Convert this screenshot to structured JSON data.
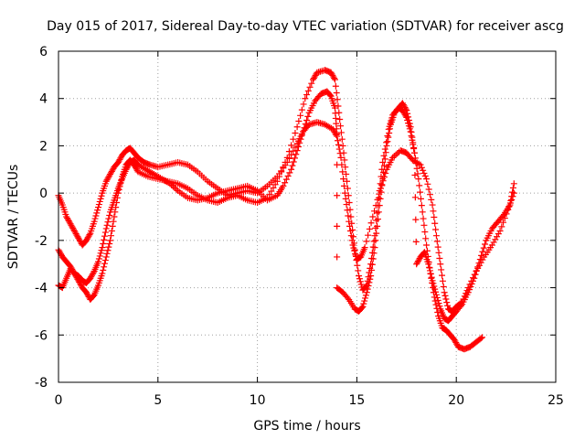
{
  "chart_data": {
    "type": "scatter",
    "title": "Day 015 of 2017, Sidereal Day-to-day VTEC variation (SDTVAR) for receiver ascg",
    "xlabel": "GPS time / hours",
    "ylabel": "SDTVAR / TECUs",
    "xlim": [
      0,
      25
    ],
    "ylim": [
      -8,
      6
    ],
    "xticks": [
      0,
      5,
      10,
      15,
      20,
      25
    ],
    "yticks": [
      -8,
      -6,
      -4,
      -2,
      0,
      2,
      4,
      6
    ],
    "grid": true,
    "marker": "+",
    "color": "#ff0000",
    "series": [
      {
        "points": [
          [
            0.0,
            -0.1
          ],
          [
            0.2,
            -0.5
          ],
          [
            0.4,
            -1.0
          ],
          [
            0.6,
            -1.3
          ],
          [
            0.8,
            -1.6
          ],
          [
            1.0,
            -1.9
          ],
          [
            1.2,
            -2.2
          ],
          [
            1.4,
            -2.0
          ],
          [
            1.6,
            -1.7
          ],
          [
            1.8,
            -1.2
          ],
          [
            2.0,
            -0.6
          ],
          [
            2.2,
            0.0
          ],
          [
            2.4,
            0.5
          ],
          [
            2.6,
            0.8
          ],
          [
            2.8,
            1.1
          ],
          [
            3.0,
            1.3
          ],
          [
            3.2,
            1.6
          ],
          [
            3.4,
            1.8
          ],
          [
            3.6,
            1.9
          ],
          [
            3.8,
            1.7
          ],
          [
            4.0,
            1.5
          ],
          [
            4.3,
            1.3
          ],
          [
            4.6,
            1.2
          ],
          [
            5.0,
            1.1
          ],
          [
            5.5,
            1.2
          ],
          [
            6.0,
            1.3
          ],
          [
            6.5,
            1.2
          ],
          [
            7.0,
            0.9
          ],
          [
            7.5,
            0.5
          ],
          [
            8.0,
            0.2
          ],
          [
            8.5,
            -0.1
          ],
          [
            9.0,
            0.0
          ],
          [
            9.5,
            0.1
          ],
          [
            10.0,
            0.0
          ],
          [
            10.5,
            0.3
          ],
          [
            11.0,
            0.7
          ],
          [
            11.5,
            1.3
          ],
          [
            12.0,
            2.1
          ],
          [
            12.3,
            2.6
          ],
          [
            12.6,
            2.9
          ],
          [
            13.0,
            3.0
          ],
          [
            13.4,
            2.9
          ],
          [
            13.8,
            2.7
          ],
          [
            14.0,
            2.4
          ],
          [
            14.2,
            1.5
          ],
          [
            14.4,
            0.0
          ],
          [
            14.6,
            -1.2
          ],
          [
            14.8,
            -2.2
          ],
          [
            15.0,
            -2.8
          ],
          [
            15.2,
            -2.7
          ],
          [
            15.4,
            -2.3
          ],
          [
            15.8,
            -1.0
          ],
          [
            16.2,
            0.2
          ],
          [
            16.5,
            1.0
          ],
          [
            16.8,
            1.5
          ],
          [
            17.2,
            1.8
          ],
          [
            17.5,
            1.7
          ],
          [
            17.8,
            1.4
          ],
          [
            18.2,
            1.2
          ],
          [
            18.5,
            0.6
          ],
          [
            18.8,
            -0.5
          ],
          [
            19.0,
            -1.8
          ],
          [
            19.2,
            -3.0
          ],
          [
            19.4,
            -4.2
          ],
          [
            19.6,
            -4.9
          ],
          [
            19.8,
            -5.0
          ],
          [
            20.0,
            -4.8
          ],
          [
            20.3,
            -4.6
          ],
          [
            20.6,
            -4.0
          ],
          [
            21.0,
            -3.3
          ],
          [
            21.4,
            -2.7
          ],
          [
            21.8,
            -2.2
          ],
          [
            22.2,
            -1.6
          ],
          [
            22.6,
            -0.7
          ],
          [
            22.9,
            0.0
          ]
        ]
      },
      {
        "points": [
          [
            0.0,
            -2.4
          ],
          [
            0.2,
            -2.7
          ],
          [
            0.4,
            -2.9
          ],
          [
            0.6,
            -3.1
          ],
          [
            0.8,
            -3.4
          ],
          [
            1.0,
            -3.7
          ],
          [
            1.2,
            -4.0
          ],
          [
            1.4,
            -4.2
          ],
          [
            1.6,
            -4.5
          ],
          [
            1.8,
            -4.3
          ],
          [
            2.0,
            -3.9
          ],
          [
            2.2,
            -3.4
          ],
          [
            2.4,
            -2.7
          ],
          [
            2.6,
            -2.0
          ],
          [
            2.8,
            -1.0
          ],
          [
            3.0,
            0.0
          ],
          [
            3.2,
            0.7
          ],
          [
            3.4,
            1.2
          ],
          [
            3.6,
            1.4
          ],
          [
            3.8,
            1.2
          ],
          [
            4.0,
            0.9
          ],
          [
            4.5,
            0.7
          ],
          [
            5.0,
            0.6
          ],
          [
            5.5,
            0.5
          ],
          [
            6.0,
            0.4
          ],
          [
            6.5,
            0.2
          ],
          [
            7.0,
            -0.1
          ],
          [
            7.5,
            -0.3
          ],
          [
            8.0,
            -0.4
          ],
          [
            8.5,
            -0.2
          ],
          [
            9.0,
            -0.1
          ],
          [
            9.5,
            -0.3
          ],
          [
            10.0,
            -0.4
          ],
          [
            10.5,
            -0.2
          ],
          [
            11.0,
            0.5
          ],
          [
            11.5,
            1.5
          ],
          [
            12.0,
            2.8
          ],
          [
            12.4,
            4.0
          ],
          [
            12.8,
            4.8
          ],
          [
            13.0,
            5.1
          ],
          [
            13.4,
            5.2
          ],
          [
            13.7,
            5.1
          ],
          [
            13.9,
            4.8
          ],
          [
            14.1,
            3.4
          ],
          [
            14.3,
            2.0
          ],
          [
            14.5,
            0.5
          ],
          [
            14.7,
            -1.0
          ],
          [
            14.9,
            -2.4
          ],
          [
            15.1,
            -3.5
          ],
          [
            15.3,
            -4.1
          ],
          [
            15.5,
            -3.9
          ],
          [
            15.7,
            -3.0
          ],
          [
            15.9,
            -1.8
          ],
          [
            16.1,
            -0.2
          ],
          [
            16.3,
            1.3
          ],
          [
            16.6,
            2.7
          ],
          [
            16.8,
            3.3
          ],
          [
            17.1,
            3.6
          ],
          [
            17.3,
            3.8
          ],
          [
            17.5,
            3.5
          ],
          [
            17.7,
            2.8
          ],
          [
            17.9,
            1.7
          ],
          [
            18.1,
            0.6
          ],
          [
            18.3,
            -0.8
          ],
          [
            18.5,
            -2.2
          ],
          [
            18.7,
            -3.4
          ],
          [
            18.9,
            -4.4
          ],
          [
            19.1,
            -5.2
          ],
          [
            19.3,
            -5.7
          ],
          [
            19.5,
            -5.8
          ],
          [
            19.7,
            -6.0
          ],
          [
            19.9,
            -6.2
          ],
          [
            20.1,
            -6.5
          ],
          [
            20.4,
            -6.6
          ],
          [
            20.7,
            -6.5
          ],
          [
            21.0,
            -6.3
          ],
          [
            21.3,
            -6.1
          ]
        ]
      },
      {
        "points": [
          [
            0.0,
            -3.9
          ],
          [
            0.2,
            -4.0
          ],
          [
            0.4,
            -3.6
          ],
          [
            0.6,
            -3.2
          ],
          [
            0.8,
            -3.4
          ],
          [
            1.0,
            -3.5
          ],
          [
            1.2,
            -3.7
          ],
          [
            1.4,
            -3.8
          ],
          [
            1.6,
            -3.6
          ],
          [
            1.8,
            -3.3
          ],
          [
            2.0,
            -2.9
          ],
          [
            2.2,
            -2.3
          ],
          [
            2.4,
            -1.5
          ],
          [
            2.6,
            -0.8
          ],
          [
            2.8,
            -0.3
          ],
          [
            3.0,
            0.2
          ],
          [
            3.2,
            0.6
          ],
          [
            3.4,
            1.0
          ],
          [
            3.6,
            1.3
          ],
          [
            3.8,
            1.4
          ],
          [
            4.0,
            1.2
          ],
          [
            4.4,
            1.0
          ],
          [
            4.8,
            0.8
          ],
          [
            5.2,
            0.6
          ],
          [
            5.6,
            0.4
          ],
          [
            6.0,
            0.1
          ],
          [
            6.5,
            -0.2
          ],
          [
            7.0,
            -0.3
          ],
          [
            7.5,
            -0.2
          ],
          [
            8.0,
            0.0
          ],
          [
            8.5,
            0.1
          ],
          [
            9.0,
            0.2
          ],
          [
            9.5,
            0.3
          ],
          [
            10.0,
            0.1
          ],
          [
            10.5,
            -0.3
          ],
          [
            11.0,
            -0.1
          ],
          [
            11.3,
            0.3
          ],
          [
            11.7,
            1.0
          ],
          [
            12.0,
            1.8
          ],
          [
            12.3,
            2.6
          ],
          [
            12.6,
            3.4
          ],
          [
            12.9,
            3.9
          ],
          [
            13.2,
            4.2
          ],
          [
            13.5,
            4.3
          ],
          [
            13.7,
            4.1
          ],
          [
            13.9,
            3.6
          ],
          [
            14.0,
            2.5
          ],
          [
            14.0,
            -4.0
          ],
          [
            14.3,
            -4.2
          ],
          [
            14.6,
            -4.5
          ],
          [
            14.9,
            -4.9
          ],
          [
            15.1,
            -5.0
          ],
          [
            15.3,
            -4.8
          ],
          [
            15.5,
            -4.2
          ],
          [
            15.7,
            -3.5
          ],
          [
            15.9,
            -2.3
          ],
          [
            16.1,
            -0.8
          ],
          [
            16.3,
            0.6
          ],
          [
            16.5,
            2.0
          ],
          [
            16.7,
            2.9
          ],
          [
            16.9,
            3.4
          ],
          [
            17.1,
            3.6
          ],
          [
            17.3,
            3.5
          ],
          [
            17.5,
            3.2
          ],
          [
            17.7,
            2.6
          ],
          [
            17.9,
            1.7
          ],
          [
            18.0,
            -3.0
          ],
          [
            18.2,
            -2.7
          ],
          [
            18.4,
            -2.5
          ],
          [
            18.6,
            -3.0
          ],
          [
            18.8,
            -3.7
          ],
          [
            19.0,
            -4.3
          ],
          [
            19.2,
            -4.9
          ],
          [
            19.4,
            -5.3
          ],
          [
            19.6,
            -5.4
          ],
          [
            19.8,
            -5.2
          ],
          [
            20.0,
            -5.0
          ],
          [
            20.3,
            -4.7
          ],
          [
            20.6,
            -4.2
          ],
          [
            20.9,
            -3.6
          ],
          [
            21.2,
            -2.8
          ],
          [
            21.5,
            -2.0
          ],
          [
            21.8,
            -1.5
          ],
          [
            22.1,
            -1.2
          ],
          [
            22.4,
            -0.9
          ],
          [
            22.7,
            -0.5
          ],
          [
            22.9,
            0.4
          ]
        ]
      }
    ]
  }
}
